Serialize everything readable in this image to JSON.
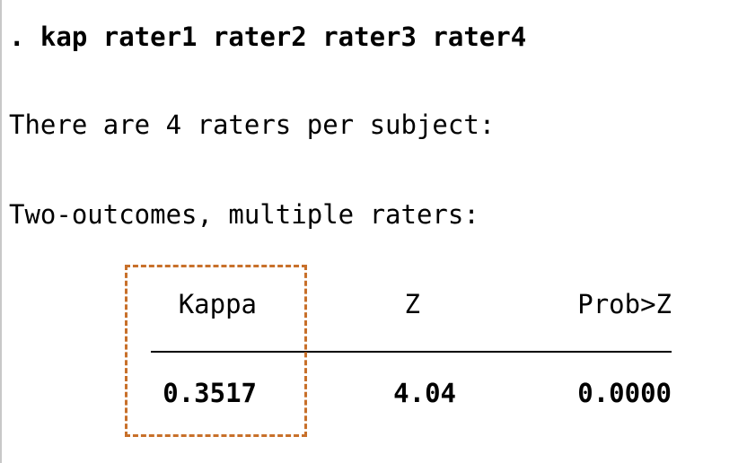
{
  "command": ". kap rater1 rater2 rater3 rater4",
  "raters_message": "There are 4 raters per subject:",
  "section_heading": "Two-outcomes, multiple raters:",
  "table": {
    "headers": [
      "Kappa",
      "Z",
      "Prob>Z"
    ],
    "values": [
      "0.3517",
      "4.04",
      "0.0000"
    ]
  },
  "highlight": {
    "target": "Kappa column",
    "style": "dashed",
    "color": "#c8702a"
  }
}
